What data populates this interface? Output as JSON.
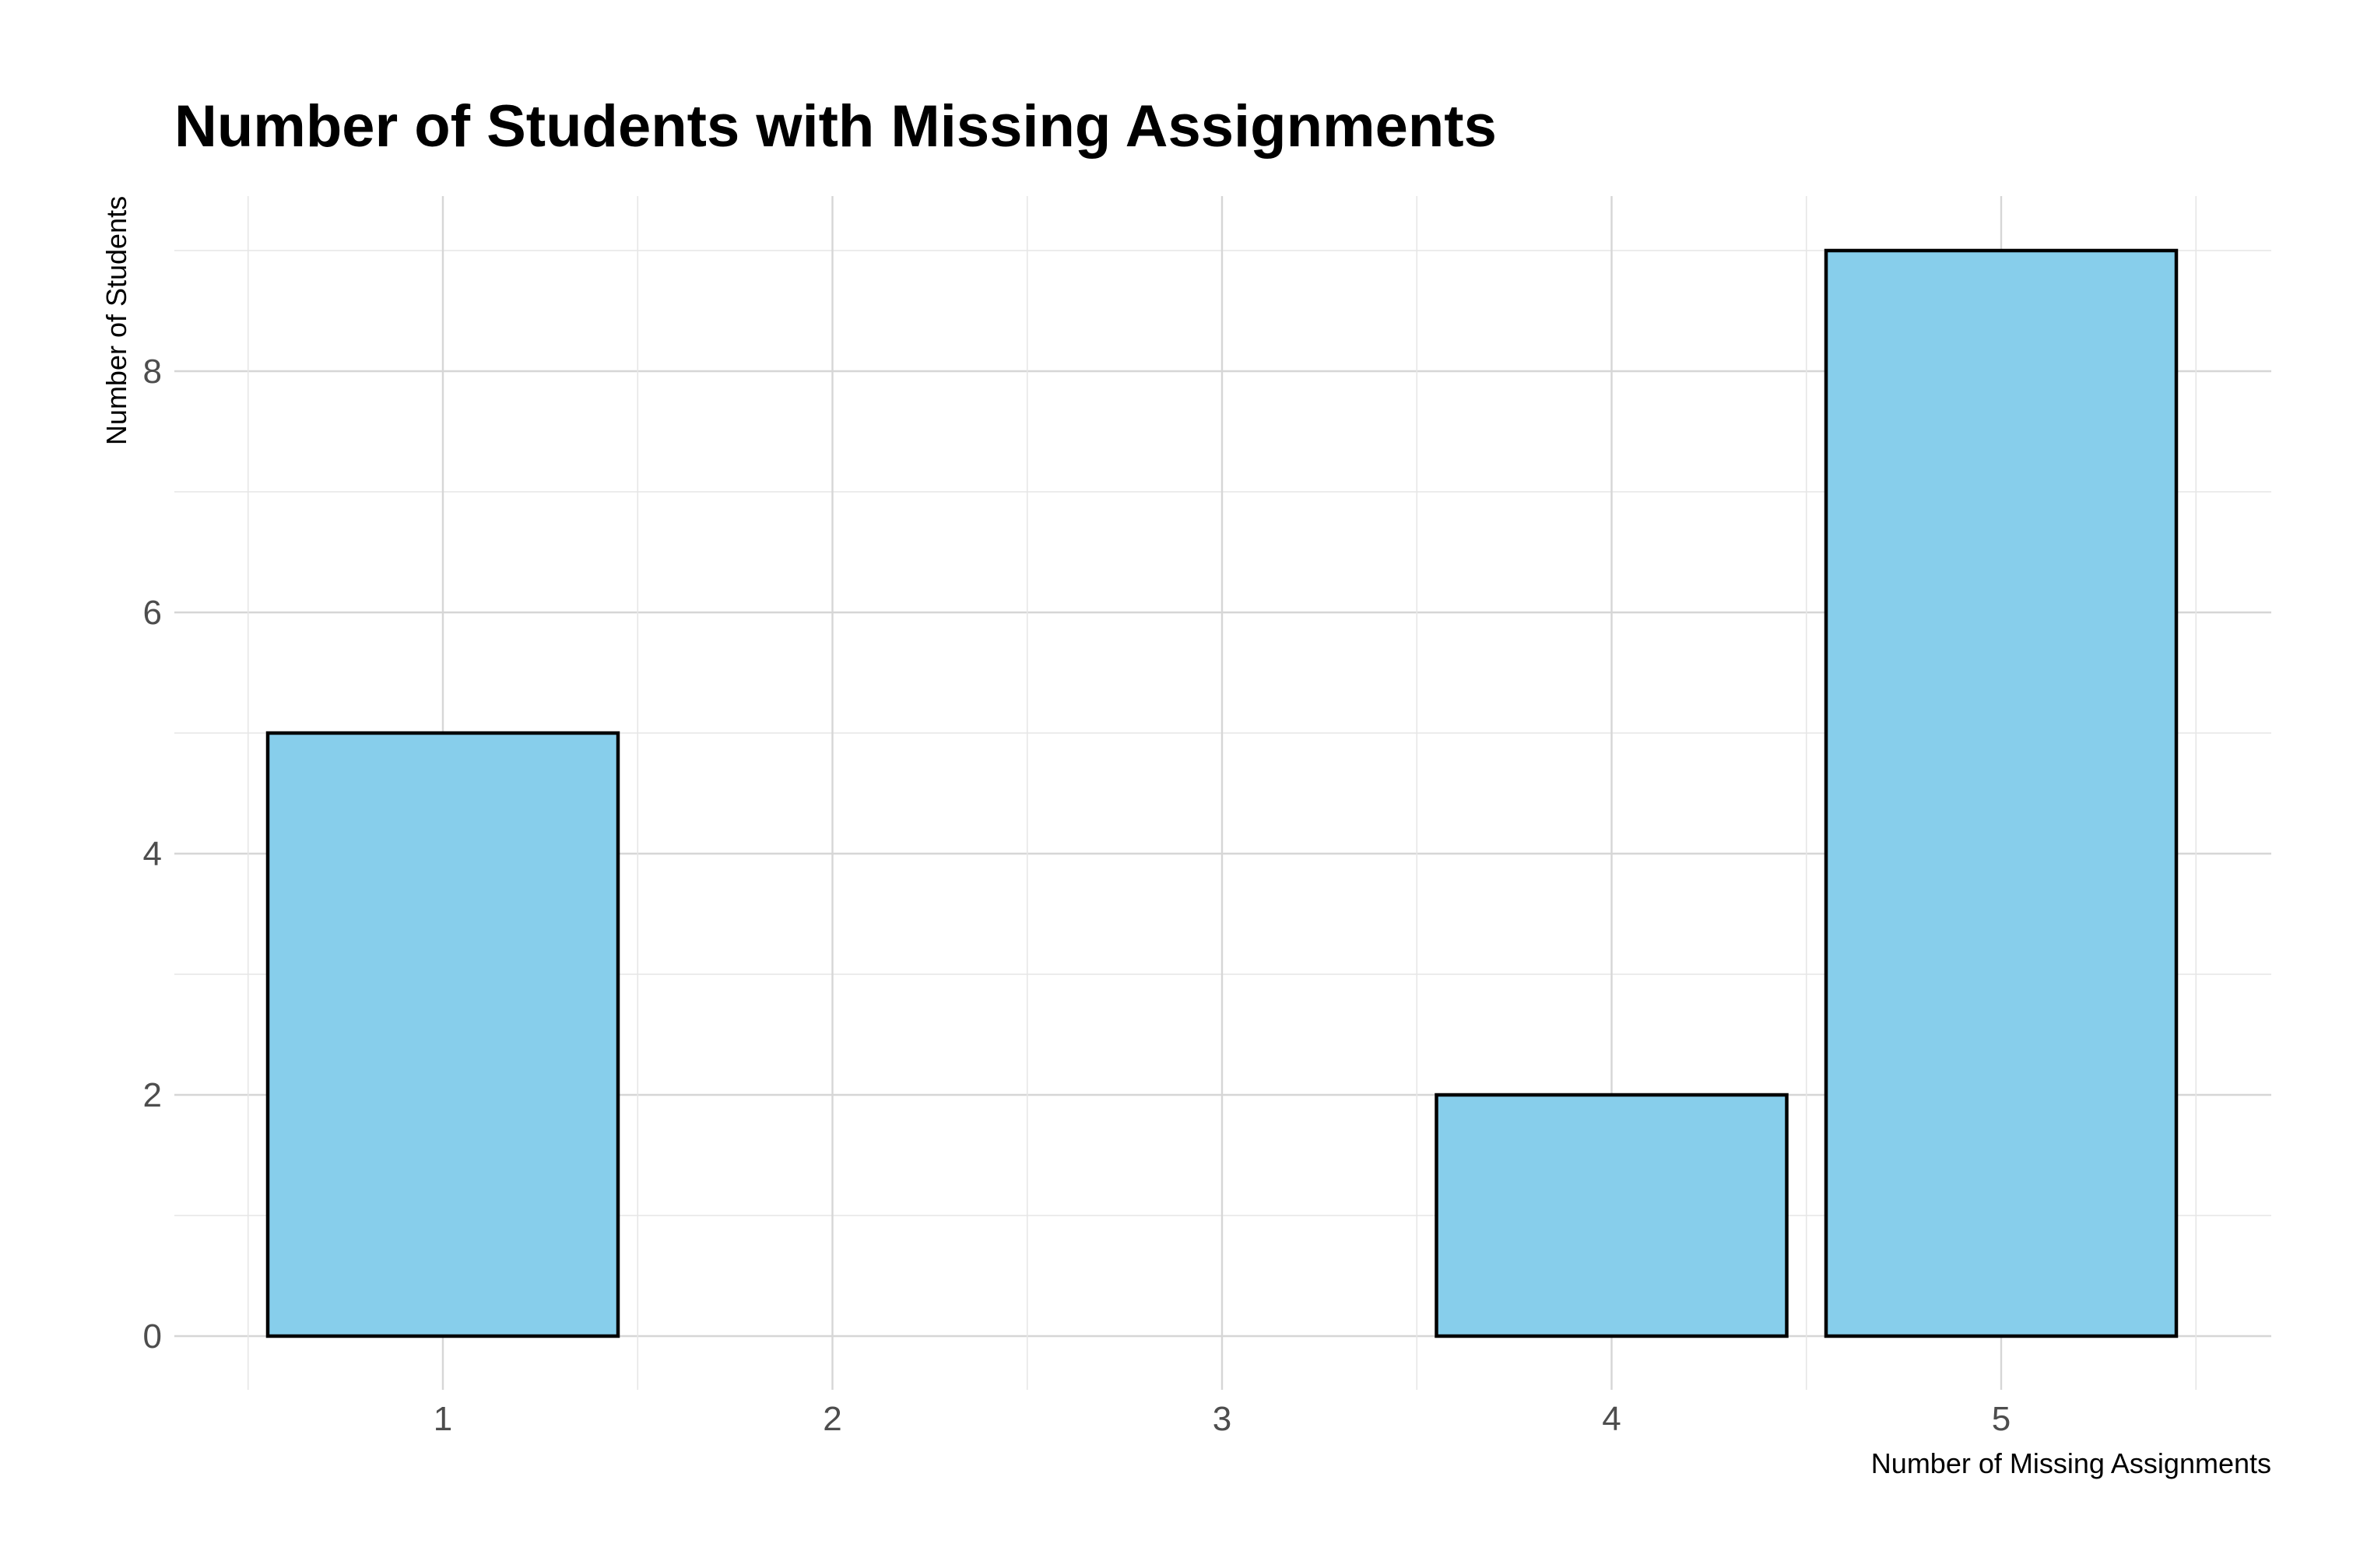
{
  "chart_data": {
    "type": "bar",
    "title": "Number of Students with Missing Assignments",
    "xlabel": "Number of Missing Assignments",
    "ylabel": "Number of Students",
    "categories": [
      "1",
      "2",
      "3",
      "4",
      "5"
    ],
    "values": [
      5,
      0,
      0,
      2,
      9
    ],
    "ylim": [
      0,
      9
    ],
    "y_ticks": [
      0,
      2,
      4,
      6,
      8
    ],
    "grid": true,
    "legend": "none",
    "colors": {
      "bar_fill": "#87ceeb",
      "bar_stroke": "#000000"
    }
  }
}
